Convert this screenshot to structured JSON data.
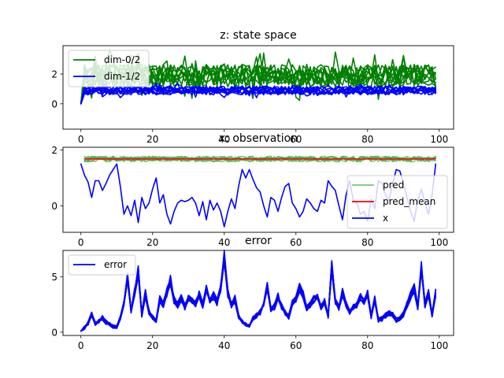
{
  "colors": {
    "green": "#008000",
    "blue": "#0000ff",
    "red": "#ff0000",
    "light_green": "#4caf50"
  },
  "chart_data": [
    {
      "type": "line",
      "title": "z: state space",
      "xlim": [
        -5,
        104
      ],
      "ylim": [
        -1.7,
        3.9
      ],
      "xticks": [
        0,
        20,
        40,
        60,
        80,
        100
      ],
      "yticks": [
        0,
        2
      ],
      "legend": {
        "position": "top-left",
        "entries": [
          "dim-0/2",
          "dim-1/2"
        ]
      },
      "series": [
        {
          "name": "dim-0/2",
          "color": "#008000",
          "lines": 10,
          "start": 0.0,
          "mean": 1.9,
          "spread": 0.75,
          "ymin": -0.1,
          "ymax": 3.6,
          "seed": 11
        },
        {
          "name": "dim-1/2",
          "color": "#0000ff",
          "lines": 10,
          "start": 0.0,
          "mean": 0.9,
          "spread": 0.3,
          "ymin": -1.55,
          "ymax": 1.4,
          "seed": 29
        }
      ]
    },
    {
      "type": "line",
      "title": "x: observation",
      "xlim": [
        -5,
        104
      ],
      "ylim": [
        -0.95,
        2.1
      ],
      "xticks": [
        0,
        20,
        40,
        60,
        80,
        100
      ],
      "yticks": [
        0,
        2
      ],
      "legend": {
        "position": "right",
        "entries": [
          "pred",
          "pred_mean",
          "x"
        ]
      },
      "pred": {
        "name": "pred",
        "color": "#4caf50",
        "lines": 8,
        "mean": 1.68,
        "spread": 0.1,
        "seed": 7
      },
      "pred_mean": {
        "name": "pred_mean",
        "color": "#ff0000",
        "value": 1.68
      },
      "x": {
        "name": "x",
        "color": "#0000ff",
        "values": [
          1.5,
          1.1,
          0.85,
          0.3,
          0.9,
          0.9,
          0.55,
          0.8,
          1.1,
          1.3,
          1.5,
          0.7,
          -0.3,
          0.0,
          -0.35,
          0.2,
          -0.6,
          0.3,
          -0.1,
          0.1,
          0.6,
          1.0,
          0.1,
          0.4,
          -0.3,
          -0.65,
          -0.2,
          0.1,
          0.2,
          0.15,
          0.2,
          0.3,
          0.1,
          -0.35,
          0.15,
          -0.5,
          0.2,
          -0.15,
          0.1,
          -0.2,
          -0.75,
          -0.2,
          0.25,
          -0.1,
          0.7,
          1.3,
          1.0,
          1.3,
          0.95,
          0.65,
          0.5,
          0.0,
          -0.4,
          0.3,
          0.2,
          -0.2,
          0.3,
          0.7,
          0.8,
          0.1,
          -0.1,
          -0.4,
          -0.2,
          0.25,
          0.1,
          -0.1,
          -0.2,
          0.2,
          0.1,
          0.9,
          0.7,
          0.55,
          0.0,
          -0.5,
          0.4,
          0.9,
          0.2,
          0.1,
          -0.3,
          -0.2,
          -0.55,
          0.25,
          -0.1,
          0.9,
          0.8,
          0.4,
          0.2,
          0.8,
          1.3,
          1.25,
          0.8,
          0.3,
          -0.2,
          -0.55,
          0.2,
          0.6,
          0.1,
          -0.3,
          0.4,
          1.5
        ]
      }
    },
    {
      "type": "line",
      "title": "error",
      "xlim": [
        -5,
        104
      ],
      "ylim": [
        -0.3,
        7.4
      ],
      "xticks": [
        0,
        20,
        40,
        60,
        80,
        100
      ],
      "yticks": [
        0,
        5
      ],
      "legend": {
        "position": "top-left",
        "entries": [
          "error"
        ]
      },
      "series": [
        {
          "name": "error",
          "color": "#0000ff",
          "lines": 10,
          "noise": 0.35,
          "seed": 101,
          "base": [
            0.1,
            0.4,
            0.8,
            1.6,
            0.8,
            1.0,
            1.3,
            0.9,
            0.7,
            0.5,
            0.5,
            1.3,
            2.5,
            5.0,
            2.0,
            3.6,
            5.5,
            1.6,
            3.5,
            1.8,
            1.3,
            1.0,
            3.0,
            2.5,
            3.6,
            4.7,
            2.9,
            2.5,
            3.1,
            2.3,
            3.0,
            2.8,
            2.6,
            3.5,
            2.4,
            4.0,
            2.8,
            3.3,
            2.7,
            4.0,
            6.8,
            3.5,
            2.4,
            3.0,
            1.4,
            1.0,
            0.7,
            0.6,
            1.2,
            1.5,
            1.8,
            2.6,
            4.2,
            2.0,
            2.3,
            3.3,
            2.3,
            1.8,
            1.4,
            2.6,
            3.0,
            4.0,
            3.4,
            2.1,
            2.5,
            3.0,
            3.3,
            2.3,
            2.8,
            1.5,
            6.0,
            2.8,
            2.2,
            3.6,
            2.5,
            1.8,
            2.2,
            2.5,
            3.2,
            2.8,
            3.5,
            1.4,
            3.0,
            1.1,
            1.2,
            1.5,
            1.7,
            1.6,
            1.1,
            1.2,
            1.6,
            2.5,
            3.3,
            4.0,
            2.2,
            6.0,
            2.5,
            3.5,
            1.6,
            3.5
          ]
        }
      ]
    }
  ]
}
